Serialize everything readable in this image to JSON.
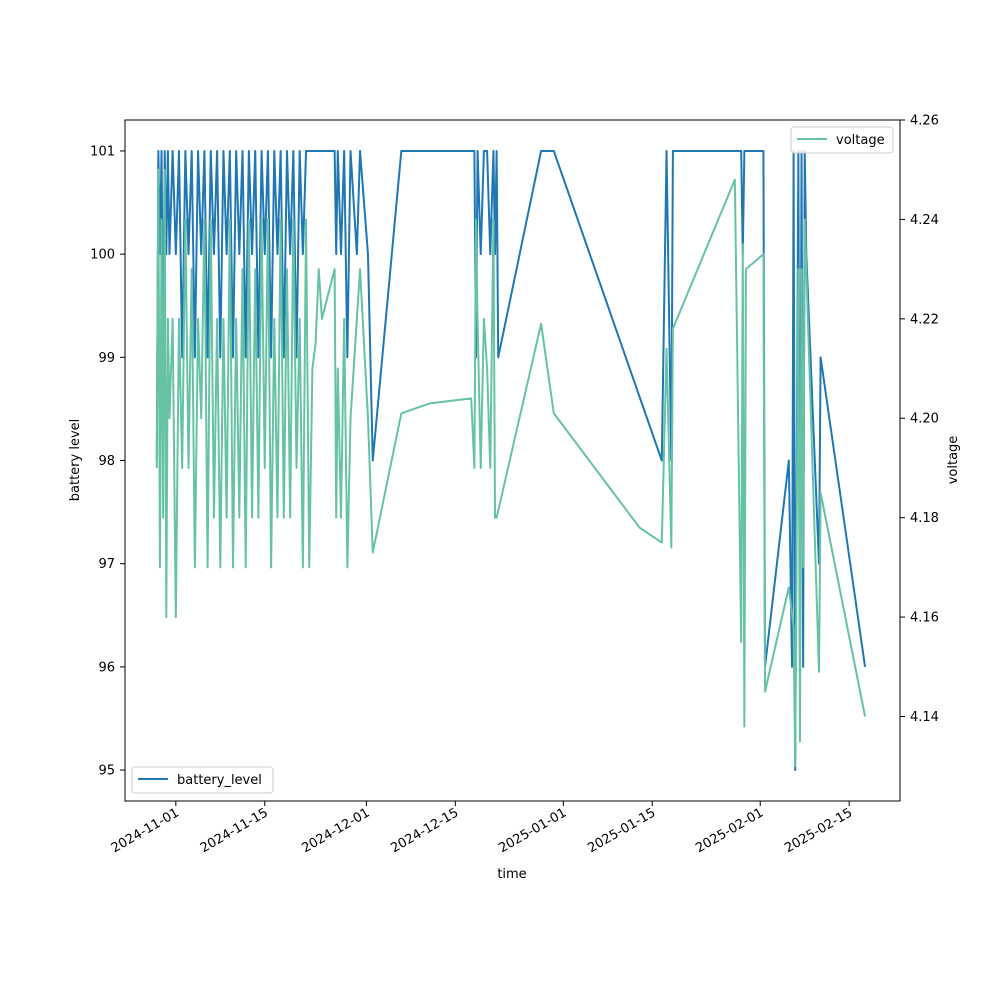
{
  "chart_data": {
    "type": "line",
    "xlabel": "time",
    "ylabel_left": "battery level",
    "ylabel_right": "voltage",
    "x_ticks": [
      "2024-11-01",
      "2024-11-15",
      "2024-12-01",
      "2024-12-15",
      "2025-01-01",
      "2025-01-15",
      "2025-02-01",
      "2025-02-15"
    ],
    "y_left_ticks": [
      95,
      96,
      97,
      98,
      99,
      100,
      101
    ],
    "y_right_ticks": [
      4.14,
      4.16,
      4.18,
      4.2,
      4.22,
      4.24,
      4.26
    ],
    "x_range": [
      "2024-10-24",
      "2025-02-23"
    ],
    "y_left_range": [
      94.7,
      101.3
    ],
    "y_right_range": [
      4.123,
      4.26
    ],
    "grid": false,
    "colors": {
      "battery_level": "#1f77b4",
      "voltage": "#66c2a5"
    },
    "legend_left": {
      "label": "battery_level",
      "placement": "lower-left"
    },
    "legend_right": {
      "label": "voltage",
      "placement": "upper-right"
    },
    "series": [
      {
        "name": "battery_level",
        "axis": "left",
        "points": [
          [
            "2024-10-29 00:00",
            98
          ],
          [
            "2024-10-29 06:00",
            101
          ],
          [
            "2024-10-29 12:00",
            100
          ],
          [
            "2024-10-29 18:00",
            101
          ],
          [
            "2024-10-30 00:00",
            99
          ],
          [
            "2024-10-30 06:00",
            101
          ],
          [
            "2024-10-30 12:00",
            100
          ],
          [
            "2024-10-30 18:00",
            101
          ],
          [
            "2024-10-31 00:00",
            100
          ],
          [
            "2024-10-31 12:00",
            101
          ],
          [
            "2024-11-01 00:00",
            100
          ],
          [
            "2024-11-01 12:00",
            101
          ],
          [
            "2024-11-02 00:00",
            99
          ],
          [
            "2024-11-02 12:00",
            101
          ],
          [
            "2024-11-03 00:00",
            100
          ],
          [
            "2024-11-03 12:00",
            101
          ],
          [
            "2024-11-04 00:00",
            99
          ],
          [
            "2024-11-04 12:00",
            101
          ],
          [
            "2024-11-05 00:00",
            100
          ],
          [
            "2024-11-05 12:00",
            101
          ],
          [
            "2024-11-06 00:00",
            99
          ],
          [
            "2024-11-06 12:00",
            101
          ],
          [
            "2024-11-07 00:00",
            100
          ],
          [
            "2024-11-07 12:00",
            101
          ],
          [
            "2024-11-08 00:00",
            99
          ],
          [
            "2024-11-08 12:00",
            101
          ],
          [
            "2024-11-09 00:00",
            100
          ],
          [
            "2024-11-09 12:00",
            101
          ],
          [
            "2024-11-10 00:00",
            99
          ],
          [
            "2024-11-10 12:00",
            101
          ],
          [
            "2024-11-11 00:00",
            100
          ],
          [
            "2024-11-11 12:00",
            101
          ],
          [
            "2024-11-12 00:00",
            99
          ],
          [
            "2024-11-12 12:00",
            101
          ],
          [
            "2024-11-13 00:00",
            100
          ],
          [
            "2024-11-13 12:00",
            101
          ],
          [
            "2024-11-14 00:00",
            99
          ],
          [
            "2024-11-14 12:00",
            101
          ],
          [
            "2024-11-15 00:00",
            100
          ],
          [
            "2024-11-15 12:00",
            101
          ],
          [
            "2024-11-16 00:00",
            99
          ],
          [
            "2024-11-16 12:00",
            101
          ],
          [
            "2024-11-17 00:00",
            100
          ],
          [
            "2024-11-17 12:00",
            101
          ],
          [
            "2024-11-18 00:00",
            99
          ],
          [
            "2024-11-18 12:00",
            101
          ],
          [
            "2024-11-19 00:00",
            100
          ],
          [
            "2024-11-19 12:00",
            101
          ],
          [
            "2024-11-20 00:00",
            99
          ],
          [
            "2024-11-20 12:00",
            101
          ],
          [
            "2024-11-21 00:00",
            100
          ],
          [
            "2024-11-21 12:00",
            101
          ],
          [
            "2024-11-22 00:00",
            101
          ],
          [
            "2024-11-25 00:00",
            101
          ],
          [
            "2024-11-26 00:00",
            101
          ],
          [
            "2024-11-26 06:00",
            100
          ],
          [
            "2024-11-26 12:00",
            101
          ],
          [
            "2024-11-27 00:00",
            100
          ],
          [
            "2024-11-27 12:00",
            101
          ],
          [
            "2024-11-28 00:00",
            99
          ],
          [
            "2024-11-28 12:00",
            101
          ],
          [
            "2024-11-29 12:00",
            100
          ],
          [
            "2024-11-30 00:00",
            101
          ],
          [
            "2024-12-01 06:00",
            100
          ],
          [
            "2024-12-02 00:00",
            98
          ],
          [
            "2024-12-06 12:00",
            101
          ],
          [
            "2024-12-18 00:00",
            101
          ],
          [
            "2024-12-18 06:00",
            99
          ],
          [
            "2024-12-18 12:00",
            101
          ],
          [
            "2024-12-19 00:00",
            100
          ],
          [
            "2024-12-19 12:00",
            101
          ],
          [
            "2024-12-20 00:00",
            101
          ],
          [
            "2024-12-20 12:00",
            100
          ],
          [
            "2024-12-21 00:00",
            101
          ],
          [
            "2024-12-21 06:00",
            100
          ],
          [
            "2024-12-21 12:00",
            101
          ],
          [
            "2024-12-21 18:00",
            99
          ],
          [
            "2024-12-28 12:00",
            101
          ],
          [
            "2024-12-30 12:00",
            101
          ],
          [
            "2025-01-16 12:00",
            98
          ],
          [
            "2025-01-17 06:00",
            101
          ],
          [
            "2025-01-18 00:00",
            98
          ],
          [
            "2025-01-18 06:00",
            101
          ],
          [
            "2025-01-29 00:00",
            101
          ],
          [
            "2025-01-29 06:00",
            100
          ],
          [
            "2025-01-29 12:00",
            101
          ],
          [
            "2025-02-01 12:00",
            101
          ],
          [
            "2025-02-01 18:00",
            96
          ],
          [
            "2025-02-05 12:00",
            98
          ],
          [
            "2025-02-06 00:00",
            96
          ],
          [
            "2025-02-06 06:00",
            101
          ],
          [
            "2025-02-06 12:00",
            95
          ],
          [
            "2025-02-07 00:00",
            101
          ],
          [
            "2025-02-07 06:00",
            96
          ],
          [
            "2025-02-07 12:00",
            101
          ],
          [
            "2025-02-07 18:00",
            96
          ],
          [
            "2025-02-08 00:00",
            101
          ],
          [
            "2025-02-08 06:00",
            100
          ],
          [
            "2025-02-10 06:00",
            97
          ],
          [
            "2025-02-10 12:00",
            99
          ],
          [
            "2025-02-17 12:00",
            96
          ]
        ]
      },
      {
        "name": "voltage",
        "axis": "right",
        "points": [
          [
            "2024-10-29 00:00",
            4.19
          ],
          [
            "2024-10-29 06:00",
            4.25
          ],
          [
            "2024-10-29 12:00",
            4.17
          ],
          [
            "2024-10-29 18:00",
            4.24
          ],
          [
            "2024-10-30 00:00",
            4.18
          ],
          [
            "2024-10-30 06:00",
            4.25
          ],
          [
            "2024-10-30 12:00",
            4.16
          ],
          [
            "2024-10-30 18:00",
            4.22
          ],
          [
            "2024-10-31 00:00",
            4.2
          ],
          [
            "2024-10-31 12:00",
            4.22
          ],
          [
            "2024-11-01 00:00",
            4.16
          ],
          [
            "2024-11-01 12:00",
            4.22
          ],
          [
            "2024-11-02 00:00",
            4.19
          ],
          [
            "2024-11-02 12:00",
            4.24
          ],
          [
            "2024-11-03 00:00",
            4.19
          ],
          [
            "2024-11-03 12:00",
            4.23
          ],
          [
            "2024-11-04 00:00",
            4.17
          ],
          [
            "2024-11-04 12:00",
            4.22
          ],
          [
            "2024-11-05 00:00",
            4.2
          ],
          [
            "2024-11-05 12:00",
            4.24
          ],
          [
            "2024-11-06 00:00",
            4.17
          ],
          [
            "2024-11-06 12:00",
            4.24
          ],
          [
            "2024-11-07 00:00",
            4.18
          ],
          [
            "2024-11-07 12:00",
            4.22
          ],
          [
            "2024-11-08 00:00",
            4.17
          ],
          [
            "2024-11-08 12:00",
            4.22
          ],
          [
            "2024-11-09 00:00",
            4.18
          ],
          [
            "2024-11-09 12:00",
            4.24
          ],
          [
            "2024-11-10 00:00",
            4.17
          ],
          [
            "2024-11-10 12:00",
            4.22
          ],
          [
            "2024-11-11 00:00",
            4.18
          ],
          [
            "2024-11-11 12:00",
            4.23
          ],
          [
            "2024-11-12 00:00",
            4.17
          ],
          [
            "2024-11-12 12:00",
            4.24
          ],
          [
            "2024-11-13 00:00",
            4.18
          ],
          [
            "2024-11-13 12:00",
            4.23
          ],
          [
            "2024-11-14 00:00",
            4.18
          ],
          [
            "2024-11-14 12:00",
            4.24
          ],
          [
            "2024-11-15 00:00",
            4.19
          ],
          [
            "2024-11-15 12:00",
            4.24
          ],
          [
            "2024-11-16 00:00",
            4.17
          ],
          [
            "2024-11-16 12:00",
            4.22
          ],
          [
            "2024-11-17 00:00",
            4.18
          ],
          [
            "2024-11-17 12:00",
            4.24
          ],
          [
            "2024-11-18 00:00",
            4.18
          ],
          [
            "2024-11-18 12:00",
            4.23
          ],
          [
            "2024-11-19 00:00",
            4.18
          ],
          [
            "2024-11-19 12:00",
            4.24
          ],
          [
            "2024-11-20 00:00",
            4.19
          ],
          [
            "2024-11-20 12:00",
            4.22
          ],
          [
            "2024-11-21 00:00",
            4.17
          ],
          [
            "2024-11-21 12:00",
            4.24
          ],
          [
            "2024-11-22 00:00",
            4.17
          ],
          [
            "2024-11-22 12:00",
            4.21
          ],
          [
            "2024-11-23 00:00",
            4.215
          ],
          [
            "2024-11-23 12:00",
            4.23
          ],
          [
            "2024-11-24 00:00",
            4.22
          ],
          [
            "2024-11-26 00:00",
            4.23
          ],
          [
            "2024-11-26 06:00",
            4.18
          ],
          [
            "2024-11-26 12:00",
            4.21
          ],
          [
            "2024-11-27 00:00",
            4.18
          ],
          [
            "2024-11-27 12:00",
            4.22
          ],
          [
            "2024-11-28 00:00",
            4.17
          ],
          [
            "2024-11-28 12:00",
            4.2
          ],
          [
            "2024-11-30 00:00",
            4.23
          ],
          [
            "2024-12-01 06:00",
            4.2
          ],
          [
            "2024-12-02 00:00",
            4.173
          ],
          [
            "2024-12-06 12:00",
            4.201
          ],
          [
            "2024-12-11 00:00",
            4.203
          ],
          [
            "2024-12-17 12:00",
            4.204
          ],
          [
            "2024-12-18 00:00",
            4.19
          ],
          [
            "2024-12-18 06:00",
            4.24
          ],
          [
            "2024-12-18 12:00",
            4.22
          ],
          [
            "2024-12-19 00:00",
            4.19
          ],
          [
            "2024-12-19 12:00",
            4.22
          ],
          [
            "2024-12-20 00:00",
            4.21
          ],
          [
            "2024-12-20 12:00",
            4.19
          ],
          [
            "2024-12-21 00:00",
            4.24
          ],
          [
            "2024-12-21 06:00",
            4.18
          ],
          [
            "2024-12-21 12:00",
            4.18
          ],
          [
            "2024-12-28 12:00",
            4.219
          ],
          [
            "2024-12-30 12:00",
            4.201
          ],
          [
            "2025-01-13 00:00",
            4.178
          ],
          [
            "2025-01-16 12:00",
            4.175
          ],
          [
            "2025-01-17 06:00",
            4.214
          ],
          [
            "2025-01-18 00:00",
            4.174
          ],
          [
            "2025-01-18 06:00",
            4.218
          ],
          [
            "2025-01-28 00:00",
            4.248
          ],
          [
            "2025-01-29 00:00",
            4.155
          ],
          [
            "2025-01-29 06:00",
            4.235
          ],
          [
            "2025-01-29 12:00",
            4.138
          ],
          [
            "2025-01-29 18:00",
            4.23
          ],
          [
            "2025-02-01 12:00",
            4.233
          ],
          [
            "2025-02-01 18:00",
            4.145
          ],
          [
            "2025-02-05 12:00",
            4.166
          ],
          [
            "2025-02-06 06:00",
            4.158
          ],
          [
            "2025-02-06 12:00",
            4.13
          ],
          [
            "2025-02-07 00:00",
            4.23
          ],
          [
            "2025-02-07 06:00",
            4.135
          ],
          [
            "2025-02-07 12:00",
            4.23
          ],
          [
            "2025-02-07 18:00",
            4.17
          ],
          [
            "2025-02-08 00:00",
            4.24
          ],
          [
            "2025-02-08 06:00",
            4.23
          ],
          [
            "2025-02-10 06:00",
            4.149
          ],
          [
            "2025-02-10 12:00",
            4.185
          ],
          [
            "2025-02-17 12:00",
            4.14
          ]
        ]
      }
    ]
  }
}
